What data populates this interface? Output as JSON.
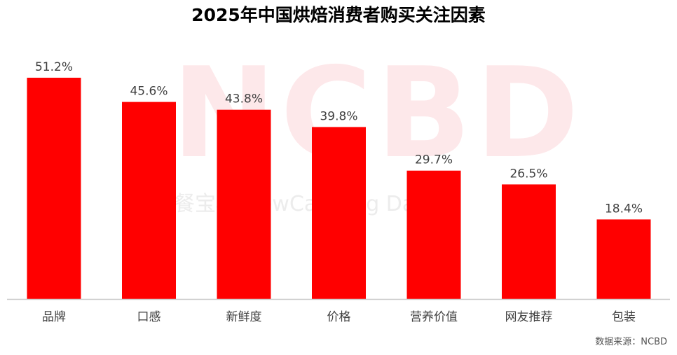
{
  "title": "2025年中国烘焙消费者购买关注因素",
  "source": "数据来源：NCBD",
  "watermark": {
    "logo": "NCBD",
    "tagline": "餐宝典 NewCatering Data"
  },
  "colors": {
    "bar": "#ff0000",
    "axis": "#c8c8c8",
    "label": "#404040"
  },
  "chart_data": {
    "type": "bar",
    "title": "2025年中国烘焙消费者购买关注因素",
    "categories": [
      "品牌",
      "口感",
      "新鲜度",
      "价格",
      "营养价值",
      "网友推荐",
      "包装"
    ],
    "values": [
      51.2,
      45.6,
      43.8,
      39.8,
      29.7,
      26.5,
      18.4
    ],
    "value_labels": [
      "51.2%",
      "45.6%",
      "43.8%",
      "39.8%",
      "29.7%",
      "26.5%",
      "18.4%"
    ],
    "unit": "%",
    "ylim": [
      0,
      60
    ],
    "grid": false,
    "legend": "none"
  }
}
